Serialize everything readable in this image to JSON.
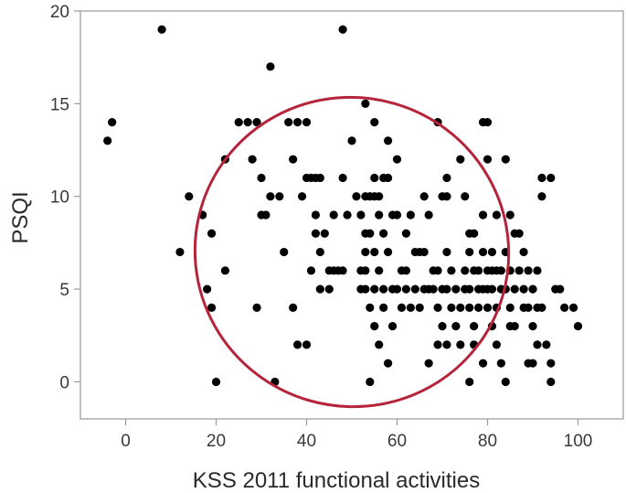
{
  "chart_data": {
    "type": "scatter",
    "title": "",
    "xlabel": "KSS 2011 functional activities",
    "ylabel": "PSQI",
    "xlim": [
      -10,
      110
    ],
    "ylim": [
      -2,
      20
    ],
    "x_ticks": [
      0,
      20,
      40,
      60,
      80,
      100
    ],
    "y_ticks": [
      0,
      5,
      10,
      15,
      20
    ],
    "grid": false,
    "legend": "none",
    "colors": {
      "points": "#000000",
      "ellipse": "#b5243a",
      "frame": "#9a9a9a"
    },
    "ellipse": {
      "center": [
        50,
        7
      ],
      "semi_axes": [
        62,
        8.5
      ],
      "rotation_deg": -16
    },
    "points": [
      [
        -4,
        13
      ],
      [
        -3,
        14
      ],
      [
        8,
        19
      ],
      [
        12,
        7
      ],
      [
        14,
        10
      ],
      [
        17,
        9
      ],
      [
        18,
        5
      ],
      [
        19,
        8
      ],
      [
        19,
        4
      ],
      [
        20,
        0
      ],
      [
        22,
        12
      ],
      [
        22,
        6
      ],
      [
        25,
        14
      ],
      [
        27,
        14
      ],
      [
        28,
        12
      ],
      [
        29,
        14
      ],
      [
        29,
        4
      ],
      [
        30,
        9
      ],
      [
        30,
        11
      ],
      [
        31,
        9
      ],
      [
        32,
        17
      ],
      [
        32,
        10
      ],
      [
        33,
        0
      ],
      [
        34,
        10
      ],
      [
        35,
        7
      ],
      [
        36,
        14
      ],
      [
        37,
        12
      ],
      [
        37,
        4
      ],
      [
        38,
        2
      ],
      [
        38,
        14
      ],
      [
        39,
        10
      ],
      [
        40,
        2
      ],
      [
        40,
        11
      ],
      [
        40,
        14
      ],
      [
        41,
        11
      ],
      [
        41,
        6
      ],
      [
        42,
        11
      ],
      [
        42,
        8
      ],
      [
        42,
        9
      ],
      [
        43,
        11
      ],
      [
        43,
        5
      ],
      [
        43,
        7
      ],
      [
        44,
        8
      ],
      [
        45,
        5
      ],
      [
        45,
        6
      ],
      [
        46,
        9
      ],
      [
        46,
        6
      ],
      [
        47,
        6
      ],
      [
        48,
        19
      ],
      [
        48,
        11
      ],
      [
        48,
        6
      ],
      [
        49,
        9
      ],
      [
        50,
        13
      ],
      [
        51,
        10
      ],
      [
        52,
        9
      ],
      [
        52,
        6
      ],
      [
        52,
        5
      ],
      [
        53,
        15
      ],
      [
        53,
        10
      ],
      [
        53,
        8
      ],
      [
        53,
        7
      ],
      [
        53,
        6
      ],
      [
        53,
        5
      ],
      [
        54,
        10
      ],
      [
        54,
        8
      ],
      [
        54,
        4
      ],
      [
        54,
        0
      ],
      [
        55,
        14
      ],
      [
        55,
        11
      ],
      [
        55,
        10
      ],
      [
        55,
        7
      ],
      [
        55,
        5
      ],
      [
        55,
        3
      ],
      [
        56,
        10
      ],
      [
        56,
        9
      ],
      [
        56,
        6
      ],
      [
        56,
        2
      ],
      [
        57,
        11
      ],
      [
        57,
        8
      ],
      [
        57,
        5
      ],
      [
        57,
        4
      ],
      [
        58,
        13
      ],
      [
        58,
        11
      ],
      [
        58,
        7
      ],
      [
        58,
        1
      ],
      [
        59,
        9
      ],
      [
        59,
        5
      ],
      [
        59,
        3
      ],
      [
        60,
        12
      ],
      [
        60,
        9
      ],
      [
        60,
        5
      ],
      [
        61,
        6
      ],
      [
        61,
        4
      ],
      [
        62,
        8
      ],
      [
        62,
        6
      ],
      [
        62,
        5
      ],
      [
        63,
        9
      ],
      [
        63,
        4
      ],
      [
        64,
        7
      ],
      [
        64,
        5
      ],
      [
        65,
        7
      ],
      [
        65,
        4
      ],
      [
        66,
        10
      ],
      [
        66,
        7
      ],
      [
        66,
        5
      ],
      [
        67,
        9
      ],
      [
        67,
        5
      ],
      [
        67,
        1
      ],
      [
        68,
        6
      ],
      [
        68,
        5
      ],
      [
        69,
        14
      ],
      [
        69,
        6
      ],
      [
        69,
        4
      ],
      [
        69,
        2
      ],
      [
        70,
        10
      ],
      [
        70,
        5
      ],
      [
        70,
        3
      ],
      [
        71,
        11
      ],
      [
        71,
        10
      ],
      [
        71,
        7
      ],
      [
        71,
        5
      ],
      [
        71,
        2
      ],
      [
        72,
        6
      ],
      [
        72,
        4
      ],
      [
        73,
        5
      ],
      [
        73,
        3
      ],
      [
        74,
        12
      ],
      [
        74,
        4
      ],
      [
        74,
        2
      ],
      [
        75,
        10
      ],
      [
        75,
        6
      ],
      [
        75,
        5
      ],
      [
        76,
        8
      ],
      [
        76,
        7
      ],
      [
        76,
        5
      ],
      [
        76,
        4
      ],
      [
        76,
        0
      ],
      [
        77,
        8
      ],
      [
        77,
        6
      ],
      [
        77,
        3
      ],
      [
        77,
        2
      ],
      [
        78,
        6
      ],
      [
        78,
        5
      ],
      [
        78,
        4
      ],
      [
        79,
        14
      ],
      [
        79,
        9
      ],
      [
        79,
        7
      ],
      [
        79,
        5
      ],
      [
        79,
        1
      ],
      [
        80,
        14
      ],
      [
        80,
        12
      ],
      [
        80,
        6
      ],
      [
        80,
        5
      ],
      [
        80,
        4
      ],
      [
        81,
        7
      ],
      [
        81,
        6
      ],
      [
        81,
        5
      ],
      [
        81,
        3
      ],
      [
        82,
        9
      ],
      [
        82,
        6
      ],
      [
        82,
        4
      ],
      [
        82,
        2
      ],
      [
        83,
        6
      ],
      [
        83,
        5
      ],
      [
        83,
        1
      ],
      [
        84,
        12
      ],
      [
        84,
        7
      ],
      [
        84,
        5
      ],
      [
        84,
        0
      ],
      [
        85,
        9
      ],
      [
        85,
        6
      ],
      [
        85,
        4
      ],
      [
        85,
        3
      ],
      [
        86,
        8
      ],
      [
        86,
        5
      ],
      [
        86,
        3
      ],
      [
        87,
        8
      ],
      [
        87,
        6
      ],
      [
        88,
        7
      ],
      [
        88,
        5
      ],
      [
        88,
        4
      ],
      [
        89,
        6
      ],
      [
        89,
        4
      ],
      [
        89,
        1
      ],
      [
        90,
        5
      ],
      [
        90,
        3
      ],
      [
        90,
        1
      ],
      [
        91,
        6
      ],
      [
        91,
        4
      ],
      [
        91,
        2
      ],
      [
        92,
        11
      ],
      [
        92,
        10
      ],
      [
        92,
        4
      ],
      [
        93,
        2
      ],
      [
        94,
        11
      ],
      [
        94,
        1
      ],
      [
        94,
        0
      ],
      [
        95,
        5
      ],
      [
        96,
        5
      ],
      [
        97,
        4
      ],
      [
        99,
        4
      ],
      [
        100,
        3
      ]
    ]
  }
}
